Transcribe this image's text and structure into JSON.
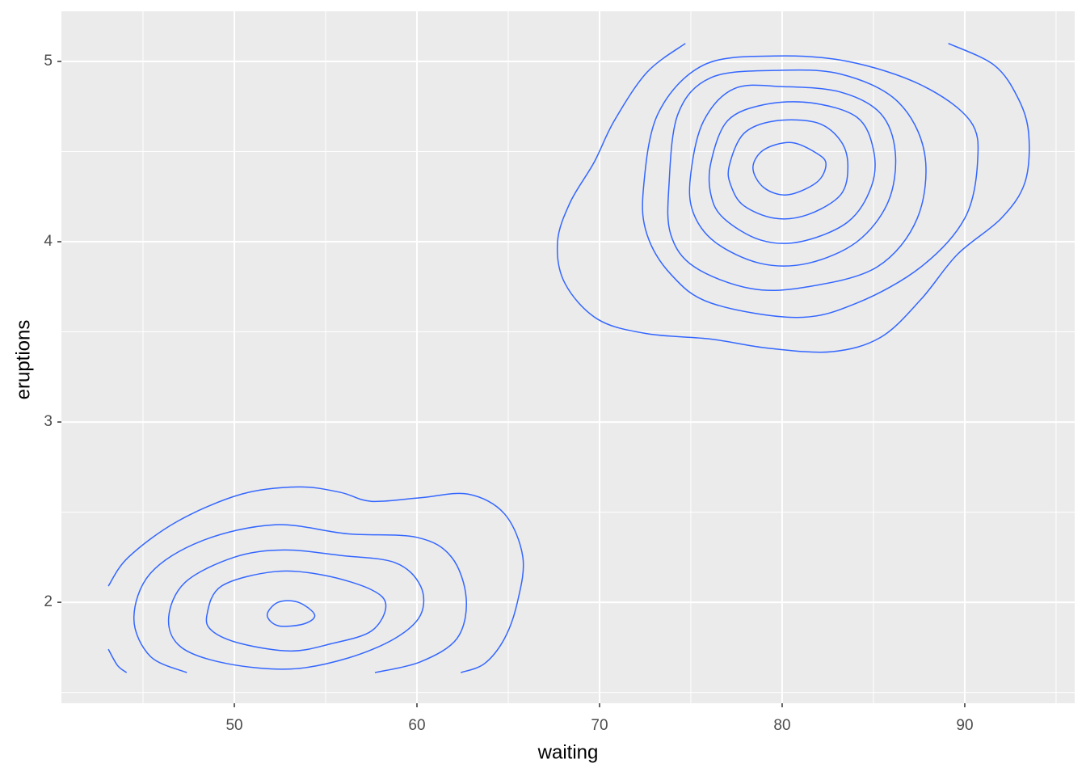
{
  "chart_data": {
    "type": "contour",
    "x_label": "waiting",
    "y_label": "eruptions",
    "xlim": [
      40.53,
      96.02
    ],
    "ylim": [
      1.44,
      5.278
    ],
    "xticks": [
      50,
      60,
      70,
      80,
      90
    ],
    "yticks": [
      2,
      3,
      4,
      5
    ],
    "x_minor": [
      45,
      55,
      65,
      75,
      85,
      95
    ],
    "y_minor": [
      1.5,
      2.5,
      3.5,
      4.5
    ],
    "grid": true,
    "color": "#3366ff",
    "series": [
      {
        "closed": true,
        "x": [
          78.4,
          79.0,
          80.5,
          81.9,
          82.4,
          81.9,
          80.3,
          79.0
        ],
        "y": [
          4.41,
          4.51,
          4.55,
          4.49,
          4.43,
          4.33,
          4.26,
          4.3
        ]
      },
      {
        "closed": true,
        "x": [
          77.1,
          77.9,
          79.6,
          81.9,
          83.2,
          83.6,
          83.2,
          81.4,
          79.6,
          77.9,
          77.2
        ],
        "y": [
          4.42,
          4.6,
          4.67,
          4.66,
          4.56,
          4.42,
          4.26,
          4.15,
          4.13,
          4.2,
          4.31
        ]
      },
      {
        "closed": true,
        "x": [
          76.1,
          77.0,
          79.0,
          81.6,
          84.1,
          85.0,
          84.9,
          83.6,
          81.0,
          78.8,
          76.8,
          76.1
        ],
        "y": [
          4.44,
          4.67,
          4.76,
          4.77,
          4.69,
          4.51,
          4.31,
          4.11,
          4.0,
          4.01,
          4.13,
          4.26
        ]
      },
      {
        "closed": true,
        "x": [
          75.0,
          75.7,
          77.4,
          80.1,
          83.2,
          85.4,
          86.2,
          85.8,
          84.1,
          81.4,
          78.8,
          76.3,
          75.1
        ],
        "y": [
          4.38,
          4.67,
          4.85,
          4.86,
          4.83,
          4.71,
          4.49,
          4.22,
          4.0,
          3.88,
          3.88,
          4.0,
          4.17
        ]
      },
      {
        "closed": true,
        "x": [
          73.8,
          74.3,
          76.1,
          79.6,
          83.2,
          86.3,
          87.8,
          87.4,
          85.2,
          81.4,
          78.3,
          75.2,
          73.9
        ],
        "y": [
          4.31,
          4.71,
          4.91,
          4.95,
          4.93,
          4.78,
          4.49,
          4.13,
          3.86,
          3.75,
          3.74,
          3.86,
          4.04
        ]
      },
      {
        "closed": true,
        "x": [
          72.4,
          73.2,
          75.7,
          79.6,
          83.6,
          87.6,
          90.3,
          90.7,
          90.0,
          87.6,
          84.1,
          80.8,
          76.1,
          73.9,
          72.6
        ],
        "y": [
          4.29,
          4.71,
          4.98,
          5.03,
          5.0,
          4.87,
          4.67,
          4.44,
          4.13,
          3.86,
          3.66,
          3.58,
          3.66,
          3.82,
          4.04
        ]
      },
      {
        "closed": false,
        "x": [
          74.7,
          72.6,
          70.8,
          69.7,
          68.4,
          67.7,
          68.1,
          69.9,
          72.6,
          76.1,
          79.2,
          82.7,
          85.4,
          87.6,
          89.6,
          92.0,
          93.3,
          93.5,
          92.9,
          91.6,
          89.1
        ],
        "y": [
          5.1,
          4.94,
          4.67,
          4.44,
          4.22,
          4.0,
          3.77,
          3.57,
          3.49,
          3.46,
          3.41,
          3.39,
          3.47,
          3.68,
          3.93,
          4.13,
          4.33,
          4.6,
          4.8,
          4.98,
          5.1
        ]
      },
      {
        "closed": true,
        "x": [
          51.8,
          52.4,
          53.5,
          54.4,
          53.8,
          52.4
        ],
        "y": [
          1.93,
          2.0,
          2.0,
          1.93,
          1.88,
          1.87
        ]
      },
      {
        "closed": true,
        "x": [
          48.5,
          49.3,
          52.2,
          54.9,
          57.5,
          58.3,
          57.5,
          55.3,
          53.1,
          50.4,
          48.8
        ],
        "y": [
          1.93,
          2.09,
          2.17,
          2.15,
          2.07,
          1.98,
          1.84,
          1.77,
          1.73,
          1.77,
          1.84
        ]
      },
      {
        "closed": true,
        "x": [
          46.4,
          47.3,
          50.0,
          52.7,
          55.8,
          58.8,
          60.2,
          60.2,
          58.8,
          56.2,
          53.1,
          49.6,
          47.1
        ],
        "y": [
          1.91,
          2.11,
          2.25,
          2.29,
          2.26,
          2.22,
          2.09,
          1.93,
          1.8,
          1.69,
          1.63,
          1.66,
          1.75
        ]
      },
      {
        "closed": false,
        "x": [
          47.4,
          45.4,
          44.5,
          45.4,
          48.2,
          52.2,
          56.2,
          60.0,
          61.9,
          62.7,
          62.2,
          60.2,
          57.7
        ],
        "y": [
          1.61,
          1.7,
          1.91,
          2.16,
          2.34,
          2.43,
          2.38,
          2.36,
          2.25,
          2.02,
          1.8,
          1.67,
          1.61
        ]
      },
      {
        "closed": false,
        "x": [
          43.1,
          44.2,
          46.9,
          50.4,
          53.5,
          55.8,
          57.5,
          60.2,
          62.8,
          64.8,
          65.8,
          65.5,
          64.8,
          63.7,
          62.4
        ],
        "y": [
          2.09,
          2.25,
          2.45,
          2.6,
          2.64,
          2.61,
          2.56,
          2.58,
          2.6,
          2.49,
          2.25,
          2.0,
          1.8,
          1.66,
          1.61
        ]
      },
      {
        "closed": false,
        "x": [
          43.1,
          43.6,
          44.1
        ],
        "y": [
          1.74,
          1.65,
          1.61
        ]
      }
    ]
  }
}
